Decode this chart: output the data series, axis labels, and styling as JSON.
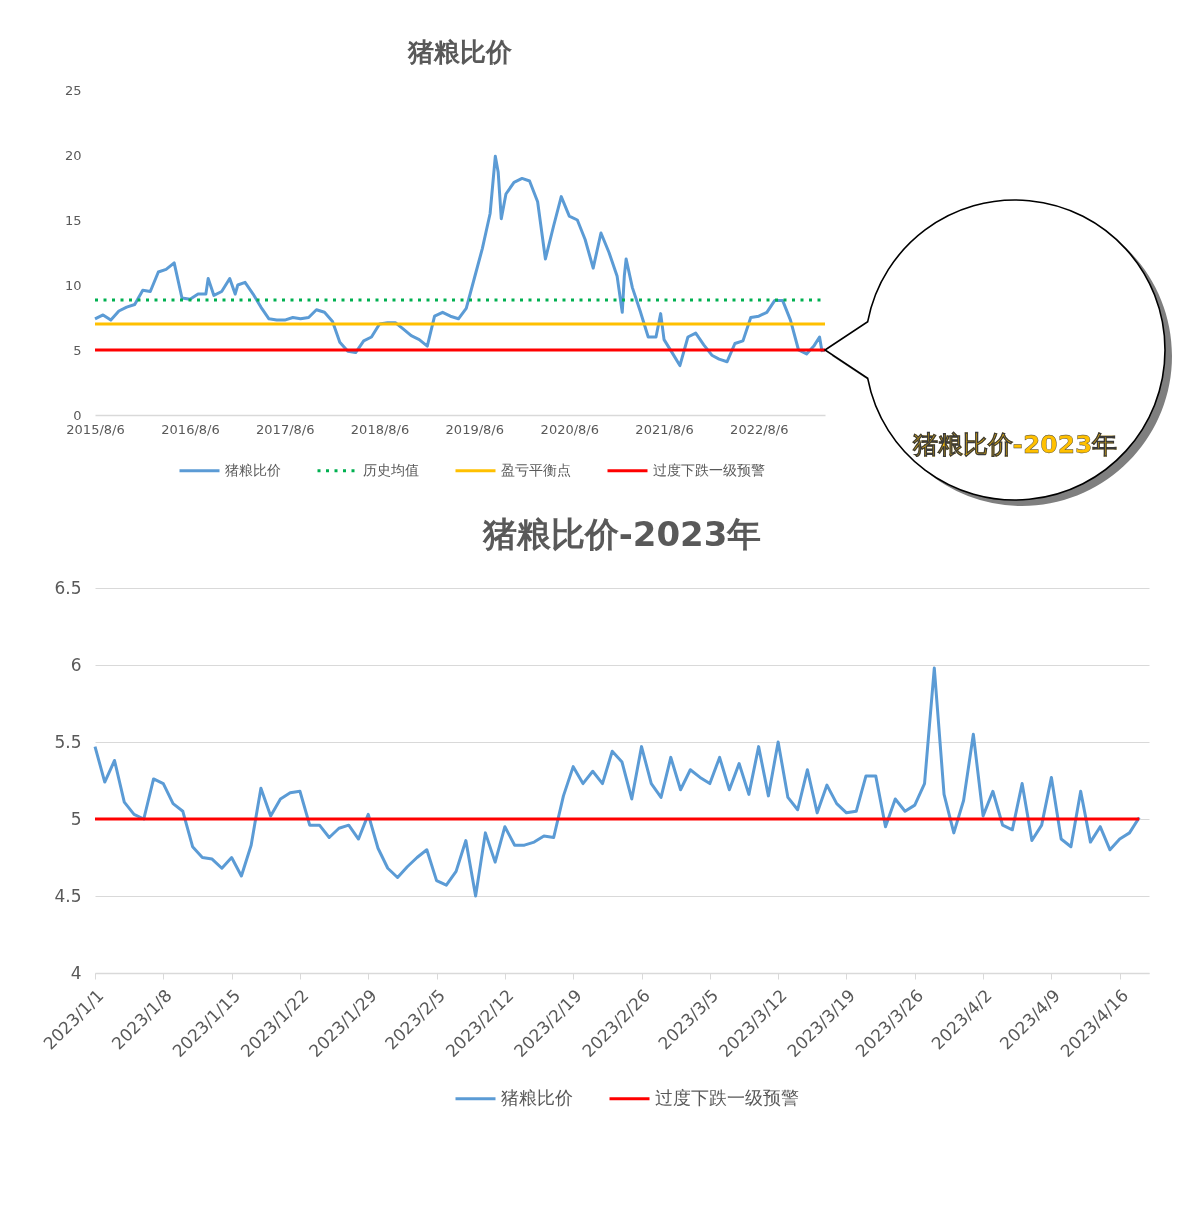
{
  "chart_data": [
    {
      "type": "line",
      "title": "猪粮比价",
      "x": [
        "2015-08-06",
        "2015-09-06",
        "2015-10-06",
        "2015-11-06",
        "2015-12-06",
        "2016-01-06",
        "2016-02-06",
        "2016-03-06",
        "2016-04-06",
        "2016-05-06",
        "2016-06-06",
        "2016-07-06",
        "2016-08-06",
        "2016-09-06",
        "2016-10-06",
        "2016-10-15",
        "2016-11-06",
        "2016-12-06",
        "2017-01-06",
        "2017-01-27",
        "2017-02-06",
        "2017-03-06",
        "2017-04-06",
        "2017-05-06",
        "2017-06-06",
        "2017-07-06",
        "2017-08-06",
        "2017-09-06",
        "2017-10-06",
        "2017-11-06",
        "2017-12-06",
        "2018-01-06",
        "2018-02-06",
        "2018-03-06",
        "2018-04-06",
        "2018-05-06",
        "2018-06-06",
        "2018-07-06",
        "2018-08-06",
        "2018-09-06",
        "2018-10-06",
        "2018-11-06",
        "2018-12-06",
        "2019-01-06",
        "2019-02-06",
        "2019-03-06",
        "2019-04-06",
        "2019-05-06",
        "2019-06-06",
        "2019-07-06",
        "2019-08-06",
        "2019-09-06",
        "2019-10-06",
        "2019-10-26",
        "2019-11-06",
        "2019-11-18",
        "2019-12-06",
        "2020-01-06",
        "2020-02-06",
        "2020-03-06",
        "2020-04-06",
        "2020-05-06",
        "2020-06-06",
        "2020-07-06",
        "2020-08-06",
        "2020-09-06",
        "2020-10-06",
        "2020-11-06",
        "2020-12-06",
        "2021-01-06",
        "2021-02-06",
        "2021-02-26",
        "2021-03-06",
        "2021-03-13",
        "2021-04-06",
        "2021-05-06",
        "2021-06-06",
        "2021-07-06",
        "2021-07-24",
        "2021-08-06",
        "2021-09-06",
        "2021-10-06",
        "2021-11-06",
        "2021-12-06",
        "2022-01-06",
        "2022-02-06",
        "2022-03-06",
        "2022-04-06",
        "2022-05-06",
        "2022-06-06",
        "2022-07-06",
        "2022-08-06",
        "2022-09-06",
        "2022-10-06",
        "2022-11-06",
        "2022-12-06",
        "2023-01-06",
        "2023-02-06",
        "2023-03-06",
        "2023-03-28",
        "2023-04-06",
        "2023-04-18"
      ],
      "series": [
        {
          "name": "猪粮比价",
          "color": "#5b9bd5",
          "values": [
            7.4,
            7.7,
            7.3,
            8.0,
            8.3,
            8.5,
            9.6,
            9.5,
            11.0,
            11.2,
            11.7,
            9.0,
            8.9,
            9.3,
            9.3,
            10.5,
            9.2,
            9.5,
            10.5,
            9.3,
            10.0,
            10.2,
            9.3,
            8.3,
            7.4,
            7.3,
            7.3,
            7.5,
            7.4,
            7.5,
            8.1,
            7.9,
            7.2,
            5.6,
            4.9,
            4.8,
            5.7,
            6.0,
            7.0,
            7.1,
            7.1,
            6.6,
            6.1,
            5.8,
            5.3,
            7.6,
            7.9,
            7.6,
            7.4,
            8.2,
            10.5,
            12.8,
            15.5,
            19.9,
            18.7,
            15.1,
            17.0,
            17.9,
            18.2,
            18.0,
            16.4,
            12.0,
            14.5,
            16.8,
            15.3,
            15.0,
            13.5,
            11.3,
            14.0,
            12.5,
            10.7,
            7.9,
            10.7,
            12.0,
            9.8,
            8.0,
            6.0,
            6.0,
            7.8,
            5.8,
            4.8,
            3.8,
            6.0,
            6.3,
            5.4,
            4.6,
            4.3,
            4.1,
            5.5,
            5.7,
            7.5,
            7.6,
            7.9,
            8.8,
            8.8,
            7.3,
            5.0,
            4.7,
            5.3,
            6.0,
            4.95,
            5.0
          ]
        },
        {
          "name": "历史均值",
          "color": "#00b050",
          "line_style": "dotted",
          "x": [
            "2015-08-06",
            "2023-04-18"
          ],
          "values": [
            8.85,
            8.85
          ]
        },
        {
          "name": "盈亏平衡点",
          "color": "#ffc000",
          "x": [
            "2015-08-06",
            "2023-04-18"
          ],
          "values": [
            7,
            7
          ]
        },
        {
          "name": "过度下跌一级预警",
          "color": "#ff0000",
          "x": [
            "2015-08-06",
            "2023-04-18"
          ],
          "values": [
            5,
            5
          ]
        }
      ],
      "xlim": [
        "2015-08-06",
        "2023-04-18"
      ],
      "xticks": [
        {
          "value": "2015-08-06",
          "label": "2015/8/6"
        },
        {
          "value": "2016-08-06",
          "label": "2016/8/6"
        },
        {
          "value": "2017-08-06",
          "label": "2017/8/6"
        },
        {
          "value": "2018-08-06",
          "label": "2018/8/6"
        },
        {
          "value": "2019-08-06",
          "label": "2019/8/6"
        },
        {
          "value": "2020-08-06",
          "label": "2020/8/6"
        },
        {
          "value": "2021-08-06",
          "label": "2021/8/6"
        },
        {
          "value": "2022-08-06",
          "label": "2022/8/6"
        }
      ],
      "ylim": [
        0,
        25
      ],
      "yticks": [
        0,
        5,
        10,
        15,
        20,
        25
      ],
      "grid": false,
      "legend": "bottom",
      "annotations": [
        "猪粮比价-2023年"
      ]
    },
    {
      "type": "line",
      "title": "猪粮比价-2023年",
      "x": [
        "2023-01-01",
        "2023-01-02",
        "2023-01-03",
        "2023-01-04",
        "2023-01-05",
        "2023-01-06",
        "2023-01-07",
        "2023-01-08",
        "2023-01-09",
        "2023-01-10",
        "2023-01-11",
        "2023-01-12",
        "2023-01-13",
        "2023-01-14",
        "2023-01-15",
        "2023-01-16",
        "2023-01-17",
        "2023-01-18",
        "2023-01-19",
        "2023-01-20",
        "2023-01-21",
        "2023-01-22",
        "2023-01-23",
        "2023-01-24",
        "2023-01-25",
        "2023-01-26",
        "2023-01-27",
        "2023-01-28",
        "2023-01-29",
        "2023-01-30",
        "2023-01-31",
        "2023-02-01",
        "2023-02-02",
        "2023-02-03",
        "2023-02-04",
        "2023-02-05",
        "2023-02-06",
        "2023-02-07",
        "2023-02-08",
        "2023-02-09",
        "2023-02-10",
        "2023-02-11",
        "2023-02-12",
        "2023-02-13",
        "2023-02-14",
        "2023-02-15",
        "2023-02-16",
        "2023-02-17",
        "2023-02-18",
        "2023-02-19",
        "2023-02-20",
        "2023-02-21",
        "2023-02-22",
        "2023-02-23",
        "2023-02-24",
        "2023-02-25",
        "2023-02-26",
        "2023-02-27",
        "2023-02-28",
        "2023-03-01",
        "2023-03-02",
        "2023-03-03",
        "2023-03-04",
        "2023-03-05",
        "2023-03-06",
        "2023-03-07",
        "2023-03-08",
        "2023-03-09",
        "2023-03-10",
        "2023-03-11",
        "2023-03-12",
        "2023-03-13",
        "2023-03-14",
        "2023-03-15",
        "2023-03-16",
        "2023-03-17",
        "2023-03-18",
        "2023-03-19",
        "2023-03-20",
        "2023-03-21",
        "2023-03-22",
        "2023-03-23",
        "2023-03-24",
        "2023-03-25",
        "2023-03-26",
        "2023-03-27",
        "2023-03-28",
        "2023-03-29",
        "2023-03-30",
        "2023-03-31",
        "2023-04-01",
        "2023-04-02",
        "2023-04-03",
        "2023-04-04",
        "2023-04-05",
        "2023-04-06",
        "2023-04-07",
        "2023-04-08",
        "2023-04-09",
        "2023-04-10",
        "2023-04-11",
        "2023-04-12",
        "2023-04-13",
        "2023-04-14",
        "2023-04-15",
        "2023-04-16",
        "2023-04-17",
        "2023-04-18"
      ],
      "series": [
        {
          "name": "猪粮比价",
          "color": "#5b9bd5",
          "values": [
            5.47,
            5.24,
            5.38,
            5.11,
            5.03,
            5.0,
            5.26,
            5.23,
            5.1,
            5.05,
            4.82,
            4.75,
            4.74,
            4.68,
            4.75,
            4.63,
            4.83,
            5.2,
            5.02,
            5.13,
            5.17,
            5.18,
            4.96,
            4.96,
            4.88,
            4.94,
            4.96,
            4.87,
            5.03,
            4.81,
            4.68,
            4.62,
            4.69,
            4.75,
            4.8,
            4.6,
            4.57,
            4.66,
            4.86,
            4.5,
            4.91,
            4.72,
            4.95,
            4.83,
            4.83,
            4.85,
            4.89,
            4.88,
            5.15,
            5.34,
            5.23,
            5.31,
            5.23,
            5.44,
            5.37,
            5.13,
            5.47,
            5.23,
            5.14,
            5.4,
            5.19,
            5.32,
            5.27,
            5.23,
            5.4,
            5.19,
            5.36,
            5.16,
            5.47,
            5.15,
            5.5,
            5.14,
            5.06,
            5.32,
            5.04,
            5.22,
            5.1,
            5.04,
            5.05,
            5.28,
            5.28,
            4.95,
            5.13,
            5.05,
            5.09,
            5.23,
            5.98,
            5.16,
            4.91,
            5.12,
            5.55,
            5.02,
            5.18,
            4.96,
            4.93,
            5.23,
            4.86,
            4.96,
            5.27,
            4.87,
            4.82,
            5.18,
            4.85,
            4.95,
            4.8,
            4.87,
            4.91,
            5.01
          ]
        },
        {
          "name": "过度下跌一级预警",
          "color": "#ff0000",
          "x": [
            "2023-01-01",
            "2023-04-18"
          ],
          "values": [
            5,
            5
          ]
        }
      ],
      "xlim": [
        "2023-01-01",
        "2023-04-19"
      ],
      "xticks": [
        {
          "value": "2023-01-01",
          "label": "2023/1/1"
        },
        {
          "value": "2023-01-08",
          "label": "2023/1/8"
        },
        {
          "value": "2023-01-15",
          "label": "2023/1/15"
        },
        {
          "value": "2023-01-22",
          "label": "2023/1/22"
        },
        {
          "value": "2023-01-29",
          "label": "2023/1/29"
        },
        {
          "value": "2023-02-05",
          "label": "2023/2/5"
        },
        {
          "value": "2023-02-12",
          "label": "2023/2/12"
        },
        {
          "value": "2023-02-19",
          "label": "2023/2/19"
        },
        {
          "value": "2023-02-26",
          "label": "2023/2/26"
        },
        {
          "value": "2023-03-05",
          "label": "2023/3/5"
        },
        {
          "value": "2023-03-12",
          "label": "2023/3/12"
        },
        {
          "value": "2023-03-19",
          "label": "2023/3/19"
        },
        {
          "value": "2023-03-26",
          "label": "2023/3/26"
        },
        {
          "value": "2023-04-02",
          "label": "2023/4/2"
        },
        {
          "value": "2023-04-09",
          "label": "2023/4/9"
        },
        {
          "value": "2023-04-16",
          "label": "2023/4/16"
        }
      ],
      "ylim": [
        4,
        6.5
      ],
      "yticks": [
        4,
        4.5,
        5,
        5.5,
        6,
        6.5
      ],
      "grid": "y",
      "legend": "bottom"
    }
  ]
}
